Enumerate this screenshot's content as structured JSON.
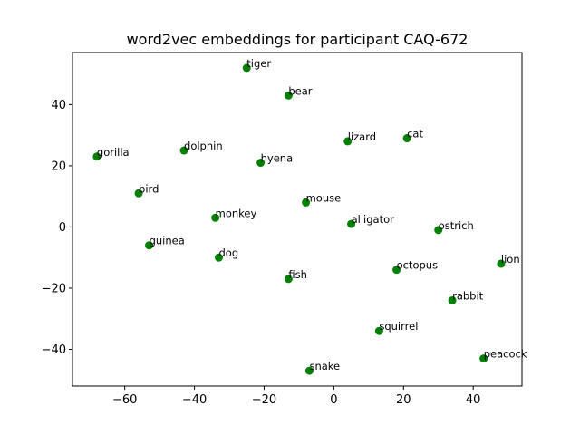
{
  "chart_data": {
    "type": "scatter",
    "title": "word2vec embeddings for participant CAQ-672",
    "xlabel": "",
    "ylabel": "",
    "xlim": [
      -75,
      54
    ],
    "ylim": [
      -52,
      57
    ],
    "xticks": [
      -60,
      -40,
      -20,
      0,
      20,
      40
    ],
    "yticks": [
      -40,
      -20,
      0,
      20,
      40
    ],
    "xtick_labels": [
      "−60",
      "−40",
      "−20",
      "0",
      "20",
      "40"
    ],
    "ytick_labels": [
      "−40",
      "−20",
      "0",
      "20",
      "40"
    ],
    "grid": false,
    "marker_color": "#008000",
    "points": [
      {
        "label": "tiger",
        "x": -25,
        "y": 52
      },
      {
        "label": "bear",
        "x": -13,
        "y": 43
      },
      {
        "label": "lizard",
        "x": 4,
        "y": 28
      },
      {
        "label": "cat",
        "x": 21,
        "y": 29
      },
      {
        "label": "gorilla",
        "x": -68,
        "y": 23
      },
      {
        "label": "dolphin",
        "x": -43,
        "y": 25
      },
      {
        "label": "hyena",
        "x": -21,
        "y": 21
      },
      {
        "label": "bird",
        "x": -56,
        "y": 11
      },
      {
        "label": "mouse",
        "x": -8,
        "y": 8
      },
      {
        "label": "monkey",
        "x": -34,
        "y": 3
      },
      {
        "label": "alligator",
        "x": 5,
        "y": 1
      },
      {
        "label": "ostrich",
        "x": 30,
        "y": -1
      },
      {
        "label": "guinea",
        "x": -53,
        "y": -6
      },
      {
        "label": "dog",
        "x": -33,
        "y": -10
      },
      {
        "label": "lion",
        "x": 48,
        "y": -12
      },
      {
        "label": "octopus",
        "x": 18,
        "y": -14
      },
      {
        "label": "fish",
        "x": -13,
        "y": -17
      },
      {
        "label": "rabbit",
        "x": 34,
        "y": -24
      },
      {
        "label": "squirrel",
        "x": 13,
        "y": -34
      },
      {
        "label": "peacock",
        "x": 43,
        "y": -43
      },
      {
        "label": "snake",
        "x": -7,
        "y": -47
      }
    ]
  }
}
